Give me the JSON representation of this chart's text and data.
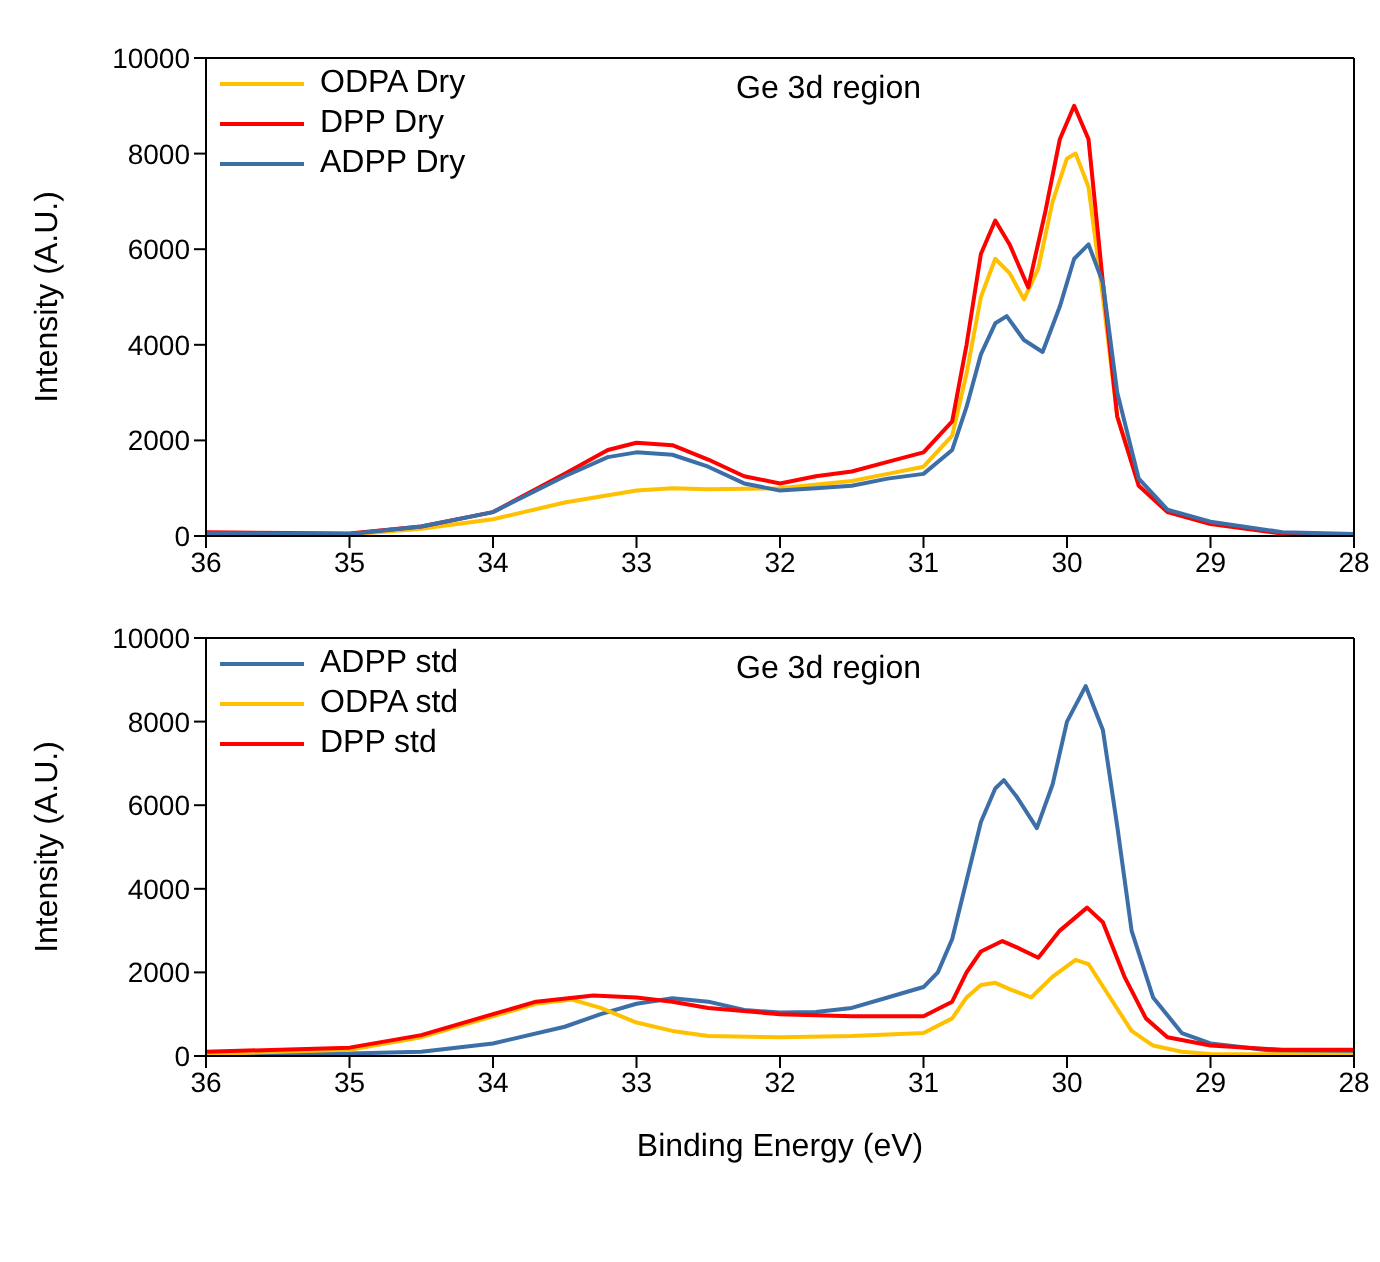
{
  "chart_data": [
    {
      "type": "line",
      "annotations": [
        "Ge 3d region"
      ],
      "ylabel": "Intensity (A.U.)",
      "xlim": [
        36,
        28
      ],
      "xticks": [
        36,
        35,
        34,
        33,
        32,
        31,
        30,
        29,
        28
      ],
      "ylim": [
        0,
        10000
      ],
      "yticks": [
        0,
        2000,
        4000,
        6000,
        8000,
        10000
      ],
      "grid": false,
      "legend": "top left",
      "marker": "none",
      "line_style": "solid",
      "series": [
        {
          "name": "ODPA Dry",
          "color": "#ffc000",
          "x": [
            36,
            35,
            34.5,
            34,
            33.5,
            33,
            32.75,
            32.5,
            32,
            31.5,
            31.25,
            31,
            30.8,
            30.7,
            30.6,
            30.5,
            30.4,
            30.3,
            30.2,
            30.1,
            30,
            29.94,
            29.85,
            29.75,
            29.65,
            29.5
          ],
          "values": [
            50,
            30,
            150,
            350,
            700,
            950,
            1000,
            980,
            1000,
            1150,
            1300,
            1450,
            2100,
            3400,
            5000,
            5800,
            5500,
            4950,
            5600,
            7000,
            7900,
            8000,
            7300,
            5000,
            2500,
            1100
          ]
        },
        {
          "name": "DPP Dry",
          "color": "#ff0000",
          "x": [
            36,
            35,
            34.5,
            34,
            33.5,
            33.2,
            33,
            32.75,
            32.5,
            32.25,
            32,
            31.75,
            31.5,
            31.25,
            31,
            30.8,
            30.7,
            30.6,
            30.5,
            30.4,
            30.27,
            30.15,
            30.05,
            29.95,
            29.85,
            29.75,
            29.65,
            29.5,
            29.3,
            29,
            28.5,
            28
          ],
          "values": [
            80,
            50,
            200,
            500,
            1300,
            1800,
            1950,
            1900,
            1600,
            1250,
            1100,
            1250,
            1350,
            1550,
            1750,
            2400,
            4000,
            5900,
            6600,
            6100,
            5200,
            6800,
            8300,
            9000,
            8300,
            5300,
            2500,
            1050,
            500,
            250,
            50,
            30
          ]
        },
        {
          "name": "ADPP Dry",
          "color": "#3c6ea8",
          "x": [
            36,
            35,
            34.5,
            34,
            33.5,
            33.2,
            33,
            32.75,
            32.5,
            32.25,
            32,
            31.75,
            31.5,
            31.25,
            31,
            30.8,
            30.7,
            30.6,
            30.5,
            30.42,
            30.3,
            30.17,
            30.05,
            29.95,
            29.85,
            29.75,
            29.65,
            29.5,
            29.3,
            29,
            28.5,
            28
          ],
          "values": [
            60,
            40,
            200,
            500,
            1250,
            1650,
            1750,
            1700,
            1450,
            1100,
            950,
            1000,
            1050,
            1200,
            1300,
            1800,
            2700,
            3800,
            4450,
            4600,
            4100,
            3850,
            4800,
            5800,
            6100,
            5300,
            3000,
            1200,
            550,
            300,
            80,
            40
          ]
        }
      ]
    },
    {
      "type": "line",
      "annotations": [
        "Ge 3d region"
      ],
      "xlabel": "Binding Energy (eV)",
      "ylabel": "Intensity (A.U.)",
      "xlim": [
        36,
        28
      ],
      "xticks": [
        36,
        35,
        34,
        33,
        32,
        31,
        30,
        29,
        28
      ],
      "ylim": [
        0,
        10000
      ],
      "yticks": [
        0,
        2000,
        4000,
        6000,
        8000,
        10000
      ],
      "grid": false,
      "legend": "top left",
      "marker": "none",
      "line_style": "solid",
      "series": [
        {
          "name": "ADPP std",
          "color": "#3c6ea8",
          "x": [
            36,
            35,
            34.5,
            34,
            33.5,
            33.25,
            33,
            32.75,
            32.5,
            32.25,
            32,
            31.75,
            31.5,
            31.25,
            31,
            30.9,
            30.8,
            30.7,
            30.6,
            30.5,
            30.44,
            30.35,
            30.21,
            30.1,
            30,
            29.87,
            29.75,
            29.65,
            29.55,
            29.4,
            29.2,
            29,
            28.5,
            28
          ],
          "values": [
            30,
            60,
            100,
            300,
            700,
            1000,
            1250,
            1380,
            1300,
            1100,
            1040,
            1050,
            1150,
            1400,
            1650,
            2000,
            2800,
            4200,
            5600,
            6400,
            6600,
            6200,
            5450,
            6500,
            8000,
            8850,
            7800,
            5500,
            3000,
            1400,
            550,
            300,
            100,
            80
          ]
        },
        {
          "name": "ODPA std",
          "color": "#ffc000",
          "x": [
            36,
            35,
            34.5,
            34,
            33.7,
            33.45,
            33.25,
            33,
            32.75,
            32.5,
            32,
            31.5,
            31,
            30.8,
            30.7,
            30.6,
            30.5,
            30.4,
            30.25,
            30.1,
            29.94,
            29.85,
            29.7,
            29.55,
            29.4,
            29.2,
            29,
            28
          ],
          "values": [
            50,
            150,
            450,
            950,
            1250,
            1350,
            1150,
            800,
            600,
            480,
            450,
            480,
            550,
            900,
            1400,
            1700,
            1750,
            1600,
            1400,
            1900,
            2300,
            2200,
            1400,
            600,
            250,
            100,
            50,
            30
          ]
        },
        {
          "name": "DPP std",
          "color": "#ff0000",
          "x": [
            36,
            35,
            34.5,
            34,
            33.7,
            33.3,
            33,
            32.75,
            32.5,
            32,
            31.5,
            31,
            30.8,
            30.7,
            30.6,
            30.45,
            30.35,
            30.2,
            30.05,
            29.86,
            29.75,
            29.6,
            29.45,
            29.3,
            29,
            28.5,
            28
          ],
          "values": [
            100,
            200,
            500,
            1000,
            1300,
            1450,
            1400,
            1300,
            1150,
            1000,
            950,
            950,
            1300,
            2000,
            2500,
            2750,
            2600,
            2350,
            3000,
            3550,
            3200,
            1900,
            900,
            450,
            250,
            150,
            150
          ]
        }
      ]
    }
  ]
}
